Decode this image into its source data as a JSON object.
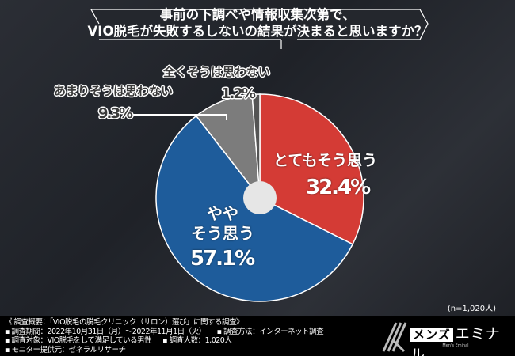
{
  "chart_data": {
    "type": "pie",
    "title": "事前の下調べや情報収集次第で、VIO脱毛が失敗するしないの結果が決まると思いますか？",
    "title_lines": [
      "事前の下調べや情報収集次第で、",
      "VIO脱毛が失敗するしないの結果が決まると思いますか？"
    ],
    "slices": [
      {
        "label": "とてもそう思う",
        "value": 32.4,
        "display": "32.4%",
        "color": "#d43b35"
      },
      {
        "label": "ややそう思う",
        "label_lines": [
          "やや",
          "そう思う"
        ],
        "value": 57.1,
        "display": "57.1%",
        "color": "#1e5c9b"
      },
      {
        "label": "あまりそうは思わない",
        "value": 9.3,
        "display": "9.3%",
        "color": "#7c7c7c"
      },
      {
        "label": "全くそうは思わない",
        "value": 1.2,
        "display": "1.2%",
        "color": "#555555"
      }
    ],
    "start": "12 o'clock, clockwise",
    "donut_hole": true,
    "note": "(n=1,020人)"
  },
  "footer": {
    "line1": "《 調査概要：「VIO脱毛の脱毛クリニック（サロン）選び」に関する調査》",
    "period": "▪ 調査期間：2022年10月31日（月）〜2022年11月1日（火）",
    "method": "▪ 調査方法：インターネット調査",
    "target": "▪ 調査対象：VIO脱毛をして満足している男性",
    "count": "▪ 調査人数：1,020人",
    "provider": "▪ モニター提供元：ゼネラルリサーチ"
  },
  "logo": {
    "brand_a": "メンズ",
    "brand_b": "エミナル",
    "tagline": "Men's Eminal"
  }
}
